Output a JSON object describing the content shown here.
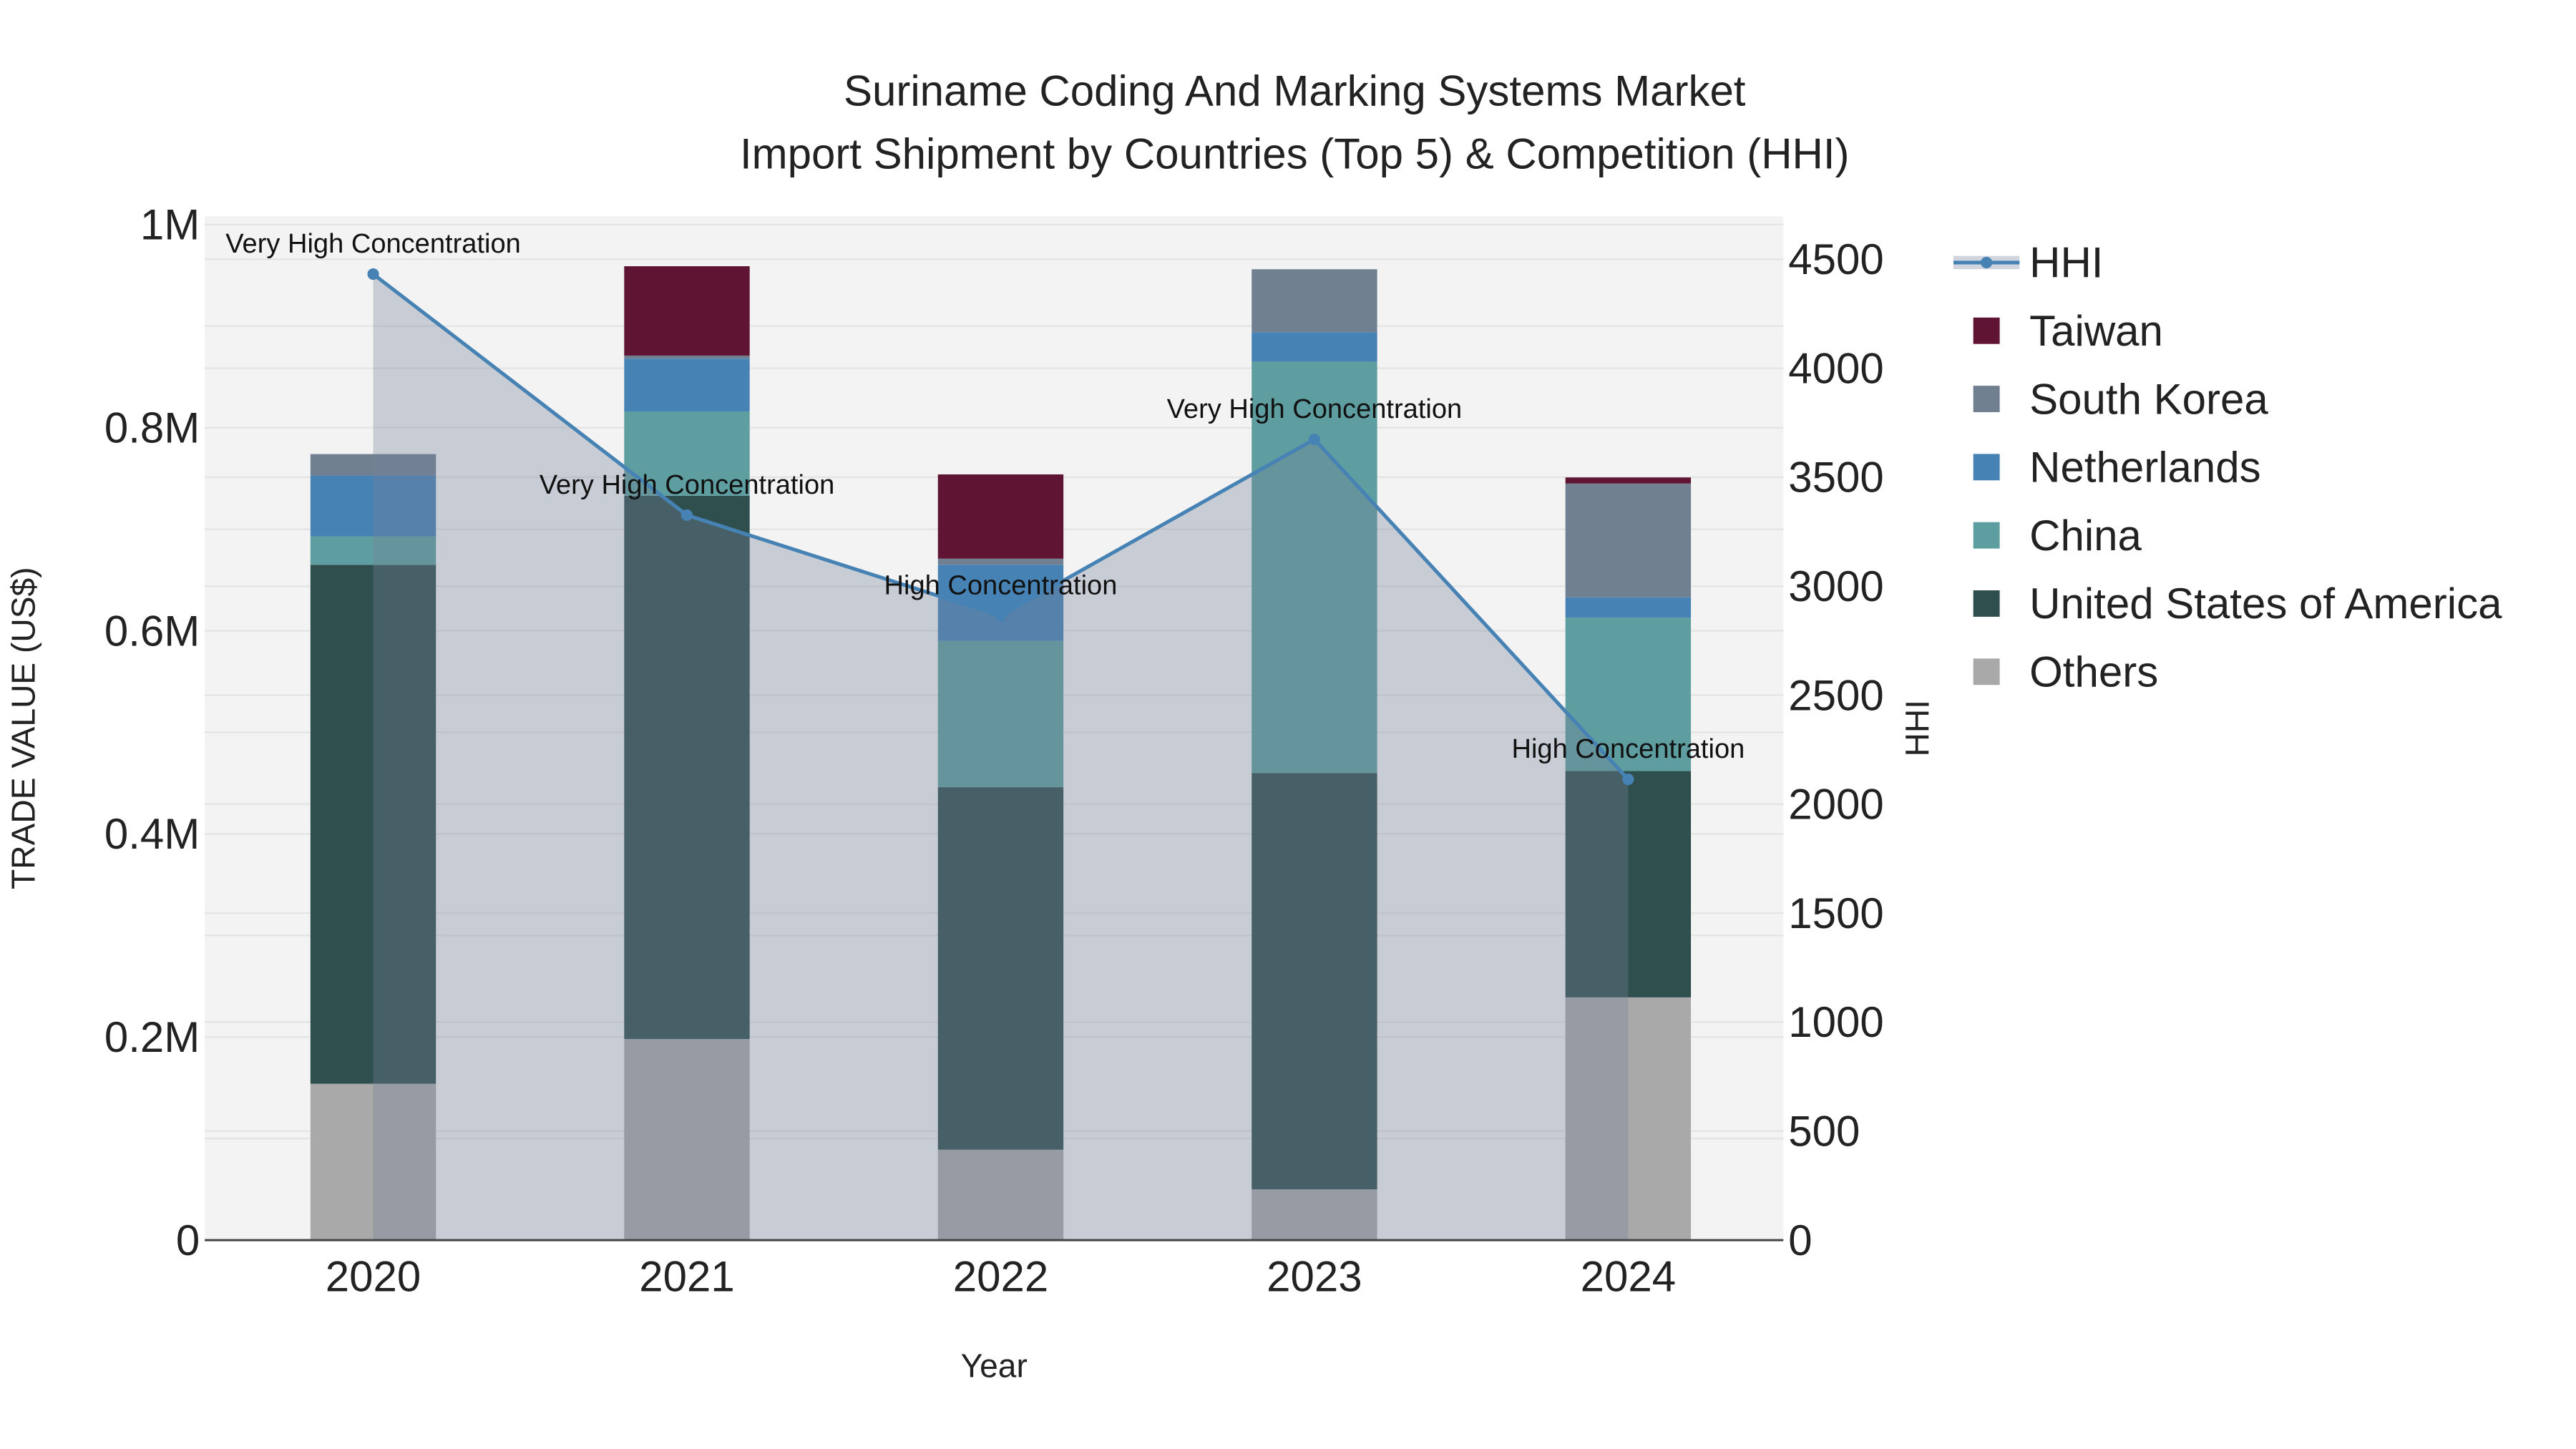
{
  "chart_data": {
    "type": "bar",
    "title_line1": "Suriname Coding And Marking Systems Market",
    "title_line2": "Import Shipment by Countries (Top 5) & Competition (HHI)",
    "xlabel": "Year",
    "ylabel": "TRADE VALUE (US$)",
    "y2label": "HHI",
    "categories": [
      "2020",
      "2021",
      "2022",
      "2023",
      "2024"
    ],
    "ylim": [
      0,
      1000000
    ],
    "y_ticks": [
      {
        "v": 0,
        "label": "0"
      },
      {
        "v": 200000,
        "label": "0.2M"
      },
      {
        "v": 400000,
        "label": "0.4M"
      },
      {
        "v": 600000,
        "label": "0.6M"
      },
      {
        "v": 800000,
        "label": "0.8M"
      },
      {
        "v": 1000000,
        "label": "1M"
      }
    ],
    "y2lim": [
      0,
      4650
    ],
    "y2_ticks": [
      0,
      500,
      1000,
      1500,
      2000,
      2500,
      3000,
      3500,
      4000,
      4500
    ],
    "series": [
      {
        "name": "Others",
        "color": "#a9a9a9",
        "values": [
          154000,
          198000,
          89000,
          50000,
          239000
        ]
      },
      {
        "name": "United States of America",
        "color": "#2f4f4f",
        "values": [
          511000,
          535000,
          357000,
          410000,
          223000
        ]
      },
      {
        "name": "China",
        "color": "#5f9ea0",
        "values": [
          28000,
          83000,
          144000,
          405000,
          151000
        ]
      },
      {
        "name": "Netherlands",
        "color": "#4682b4",
        "values": [
          60000,
          52000,
          75000,
          29000,
          20000
        ]
      },
      {
        "name": "South Korea",
        "color": "#708090",
        "values": [
          21000,
          3000,
          6000,
          62000,
          112000
        ]
      },
      {
        "name": "Taiwan",
        "color": "#5f1434",
        "values": [
          0,
          88000,
          83000,
          0,
          6000
        ]
      }
    ],
    "hhi": {
      "name": "HHI",
      "color": "#4682b4",
      "values": [
        4432,
        3326,
        2864,
        3674,
        2114
      ],
      "annotations": [
        "Very High Concentration",
        "Very High Concentration",
        "High Concentration",
        "Very High Concentration",
        "High Concentration"
      ]
    },
    "legend_order": [
      "HHI",
      "Taiwan",
      "South Korea",
      "Netherlands",
      "China",
      "United States of America",
      "Others"
    ],
    "legend_placement": "right",
    "grid": true
  }
}
